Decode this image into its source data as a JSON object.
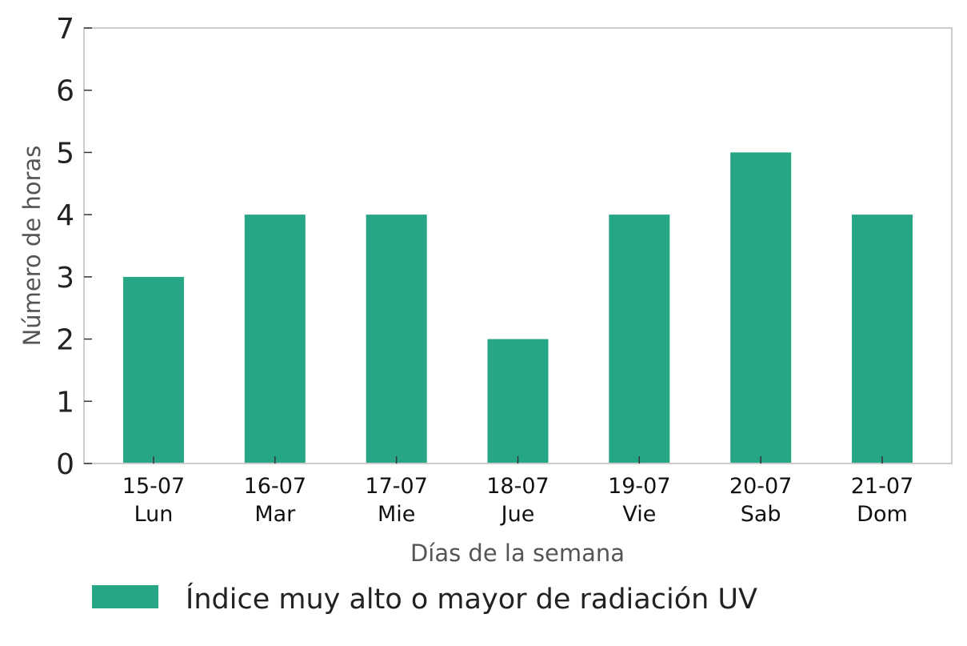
{
  "chart_data": {
    "type": "bar",
    "categories": [
      {
        "date": "15-07",
        "day": "Lun"
      },
      {
        "date": "16-07",
        "day": "Mar"
      },
      {
        "date": "17-07",
        "day": "Mie"
      },
      {
        "date": "18-07",
        "day": "Jue"
      },
      {
        "date": "19-07",
        "day": "Vie"
      },
      {
        "date": "20-07",
        "day": "Sab"
      },
      {
        "date": "21-07",
        "day": "Dom"
      }
    ],
    "series": [
      {
        "name": "Índice muy alto o mayor de radiación UV",
        "values": [
          3,
          4,
          4,
          2,
          4,
          5,
          4
        ],
        "color": "#27a685"
      }
    ],
    "xlabel": "Días de la semana",
    "ylabel": "Número de horas",
    "ylim": [
      0,
      7
    ],
    "yticks": [
      "0",
      "1",
      "2",
      "3",
      "4",
      "5",
      "6",
      "7"
    ],
    "grid": false,
    "legend_position": "bottom"
  }
}
